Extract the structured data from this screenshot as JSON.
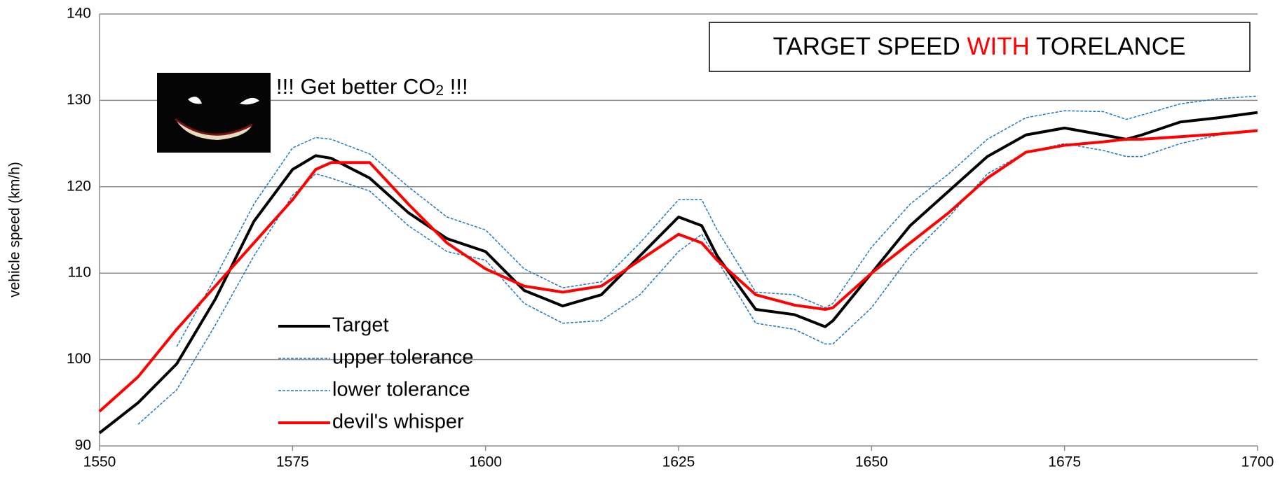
{
  "chart_data": {
    "type": "line",
    "y_label": "vehicle speed (km/h)",
    "x": [
      1550,
      1555,
      1560,
      1565,
      1570,
      1575,
      1578,
      1580,
      1585,
      1590,
      1595,
      1600,
      1605,
      1610,
      1615,
      1620,
      1625,
      1628,
      1630,
      1635,
      1640,
      1644,
      1645,
      1650,
      1655,
      1660,
      1665,
      1670,
      1675,
      1680,
      1683,
      1685,
      1690,
      1695,
      1700
    ],
    "series": [
      {
        "name": "Target",
        "color": "#000000",
        "line_style": "solid",
        "line_width": 4,
        "values": [
          91.5,
          95,
          99.5,
          107,
          116,
          122,
          123.6,
          123.3,
          121,
          117,
          114,
          112.5,
          108,
          106.2,
          107.5,
          112,
          116.5,
          115.5,
          112,
          105.8,
          105.2,
          103.8,
          104.5,
          110,
          115.5,
          119.5,
          123.5,
          126,
          126.8,
          126,
          125.5,
          126,
          127.5,
          128,
          128.6
        ]
      },
      {
        "name": "upper tolerance",
        "color": "#1f77c4",
        "line_style": "dashed",
        "line_width": 1.5,
        "values": [
          null,
          null,
          101.5,
          109.5,
          118,
          124.5,
          125.7,
          125.5,
          123.8,
          120,
          116.5,
          115,
          110.5,
          108.3,
          109,
          113.5,
          118.5,
          118.5,
          115,
          107.8,
          107.5,
          106,
          106.5,
          113,
          118,
          121.5,
          125.5,
          128,
          128.8,
          128.7,
          127.8,
          128.3,
          129.6,
          130.2,
          130.5
        ]
      },
      {
        "name": "lower tolerance",
        "color": "#1f77c4",
        "line_style": "dashed",
        "line_width": 1.5,
        "values": [
          null,
          92.5,
          96.5,
          104,
          112,
          119,
          121.5,
          121,
          119.5,
          115.5,
          112.5,
          111.5,
          106.5,
          104.2,
          104.5,
          107.5,
          112.5,
          114.5,
          111.5,
          104.2,
          103.5,
          101.8,
          101.8,
          106,
          112,
          116.5,
          121.5,
          124,
          125,
          124.2,
          123.5,
          123.5,
          125,
          126,
          126.5
        ]
      },
      {
        "name": "devil's whisper",
        "color": "#ff0000",
        "line_style": "solid",
        "line_width": 4,
        "values": [
          94,
          98,
          103.5,
          108.5,
          113.5,
          118.5,
          122,
          122.8,
          122.8,
          118,
          113.5,
          110.5,
          108.5,
          107.8,
          108.5,
          111.5,
          114.5,
          113.5,
          111.5,
          107.5,
          106.3,
          105.8,
          106,
          110,
          113.5,
          117,
          121,
          124,
          124.8,
          125.2,
          125.5,
          125.5,
          125.8,
          126.1,
          126.5
        ]
      }
    ],
    "xlim": [
      1550,
      1700
    ],
    "xticks": [
      1550,
      1575,
      1600,
      1625,
      1650,
      1675,
      1700
    ],
    "ylim": [
      90,
      140
    ],
    "yticks": [
      90,
      100,
      110,
      120,
      130,
      140
    ],
    "grid": true,
    "legend": "lower left",
    "annotations": {
      "box": [
        "TARGET SPEED ",
        "WITH",
        " TORELANCE"
      ],
      "box_highlight_color": "#ff0000",
      "note": [
        "!!! Get better CO",
        "2",
        " !!!"
      ]
    }
  }
}
